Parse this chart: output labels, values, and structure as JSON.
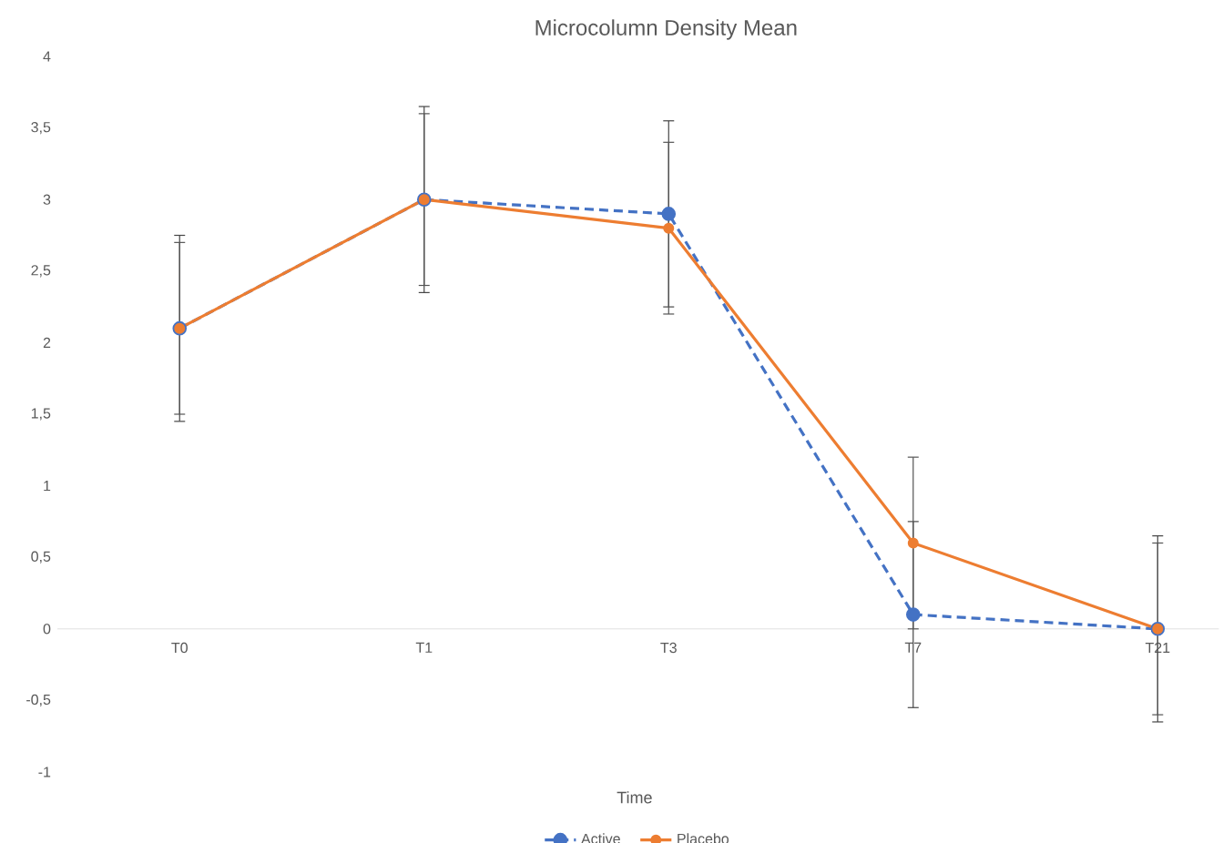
{
  "chart_data": {
    "type": "line",
    "title": "Microcolumn Density Mean",
    "xlabel": "Time",
    "categories": [
      "T0",
      "T1",
      "T3",
      "T7",
      "T21"
    ],
    "series": [
      {
        "name": "Active",
        "color": "#4472c4",
        "line_style": "dashed",
        "values": [
          2.1,
          3.0,
          2.9,
          0.1,
          0.0
        ],
        "errors": [
          0.65,
          0.65,
          0.65,
          0.65,
          0.65
        ]
      },
      {
        "name": "Placebo",
        "color": "#ed7d31",
        "line_style": "solid",
        "values": [
          2.1,
          3.0,
          2.8,
          0.6,
          0.0
        ],
        "errors": [
          0.6,
          0.6,
          0.6,
          0.6,
          0.6
        ]
      }
    ],
    "ylim": [
      -1,
      4
    ],
    "yticks": [
      -1,
      {
        "value": -0.5,
        "label": "-0,5"
      },
      0,
      {
        "value": 0.5,
        "label": "0,5"
      },
      1,
      {
        "value": 1.5,
        "label": "1,5"
      },
      2,
      {
        "value": 2.5,
        "label": "2,5"
      },
      3,
      {
        "value": 3.5,
        "label": "3,5"
      },
      4
    ],
    "grid": false,
    "legend": "bottom",
    "marker": "circle"
  }
}
